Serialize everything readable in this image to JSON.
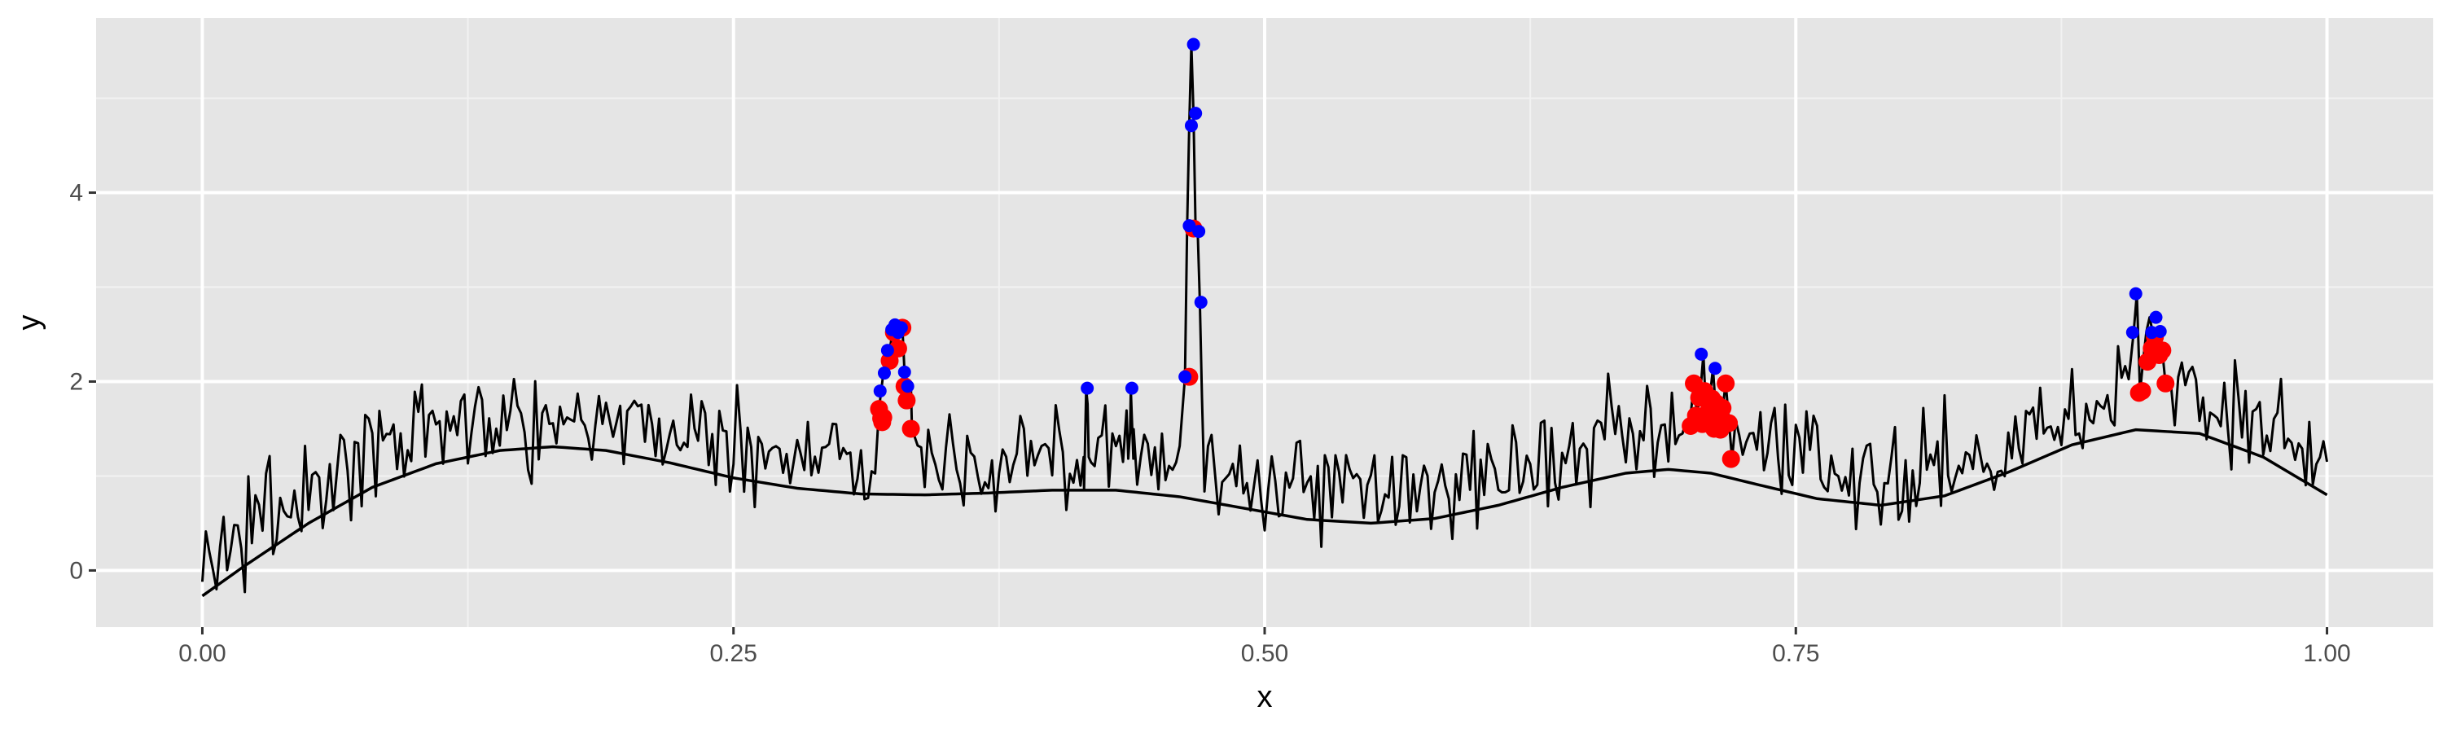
{
  "chart_data": {
    "type": "line",
    "title": "",
    "xlabel": "x",
    "ylabel": "y",
    "xlim": [
      -0.05,
      1.05
    ],
    "ylim": [
      -0.6,
      5.85
    ],
    "x_ticks": [
      0.0,
      0.25,
      0.5,
      0.75,
      1.0
    ],
    "x_tick_labels": [
      "0.00",
      "0.25",
      "0.50",
      "0.75",
      "1.00"
    ],
    "y_ticks": [
      0,
      2,
      4
    ],
    "y_tick_labels": [
      "0",
      "2",
      "4"
    ],
    "grid": true,
    "legend": "none",
    "colors": {
      "panel_background": "#e5e5e5",
      "grid_major": "#ffffff",
      "grid_minor": "#f2f2f2",
      "line": "#000000",
      "red_points": "#ff0000",
      "blue_points": "#0000ff",
      "tick_text": "#4d4d4d",
      "tick_mark": "#333333"
    },
    "smooth_curve": {
      "x": [
        0.0,
        0.02,
        0.05,
        0.08,
        0.11,
        0.14,
        0.165,
        0.19,
        0.22,
        0.25,
        0.28,
        0.31,
        0.34,
        0.37,
        0.4,
        0.43,
        0.46,
        0.49,
        0.52,
        0.55,
        0.58,
        0.61,
        0.64,
        0.67,
        0.69,
        0.71,
        0.73,
        0.76,
        0.79,
        0.82,
        0.85,
        0.88,
        0.91,
        0.94,
        0.97,
        1.0
      ],
      "y": [
        -0.27,
        0.05,
        0.5,
        0.88,
        1.13,
        1.27,
        1.31,
        1.27,
        1.14,
        0.98,
        0.87,
        0.81,
        0.8,
        0.82,
        0.85,
        0.85,
        0.78,
        0.66,
        0.54,
        0.5,
        0.55,
        0.69,
        0.88,
        1.03,
        1.07,
        1.03,
        0.92,
        0.76,
        0.69,
        0.79,
        1.04,
        1.33,
        1.49,
        1.45,
        1.2,
        0.8
      ]
    },
    "noisy_series": {
      "baseline_offset": 0.35,
      "noise_amplitude": 0.28,
      "start_point": [
        0.0,
        -0.12
      ],
      "end_point": [
        1.0,
        1.15
      ],
      "point_count": 600,
      "spikes": [
        {
          "x": 0.416,
          "y": 1.92
        },
        {
          "x": 0.437,
          "y": 1.92
        }
      ]
    },
    "peak_clusters": [
      {
        "x": [
          0.3185,
          0.3195,
          0.3205,
          0.322,
          0.3235,
          0.325,
          0.3265,
          0.3275,
          0.3285,
          0.3295,
          0.3305,
          0.3315,
          0.3325,
          0.3335,
          0.334
        ],
        "y": [
          1.71,
          1.9,
          2.08,
          2.22,
          2.33,
          2.55,
          2.6,
          2.52,
          2.6,
          2.57,
          2.1,
          1.95,
          1.8,
          1.95,
          1.5
        ]
      },
      {
        "x": [
          0.4625,
          0.4635,
          0.4645,
          0.4655,
          0.4665,
          0.4675,
          0.4685,
          0.4695,
          0.4705
        ],
        "y": [
          2.05,
          3.63,
          4.71,
          5.57,
          4.84,
          3.6,
          3.58,
          2.84,
          1.83
        ]
      },
      {
        "x": [
          0.7,
          0.702,
          0.7035,
          0.705,
          0.7065,
          0.708,
          0.7095,
          0.711,
          0.7125,
          0.714,
          0.7155,
          0.717,
          0.7185,
          0.72
        ],
        "y": [
          1.53,
          1.98,
          1.65,
          1.87,
          2.29,
          1.56,
          1.83,
          2.14,
          1.65,
          1.49,
          1.7,
          1.99,
          1.58,
          1.18
        ]
      },
      {
        "x": [
          0.909,
          0.9105,
          0.912,
          0.9135,
          0.915,
          0.9165,
          0.918,
          0.9195,
          0.921,
          0.9225,
          0.924
        ],
        "y": [
          2.52,
          2.93,
          1.88,
          2.23,
          2.53,
          2.68,
          2.52,
          2.29,
          2.55,
          2.32,
          1.98
        ]
      }
    ],
    "red_points": {
      "x": [
        0.3185,
        0.3195,
        0.32,
        0.3205,
        0.3235,
        0.3255,
        0.3275,
        0.3295,
        0.3305,
        0.3315,
        0.3335,
        0.4645,
        0.4665,
        0.7005,
        0.702,
        0.703,
        0.7045,
        0.706,
        0.707,
        0.708,
        0.709,
        0.7105,
        0.7115,
        0.7125,
        0.7135,
        0.7145,
        0.7155,
        0.717,
        0.7185,
        0.7195,
        0.9115,
        0.913,
        0.9155,
        0.9175,
        0.919,
        0.921,
        0.9225,
        0.924
      ],
      "y": [
        1.71,
        1.61,
        1.57,
        1.62,
        2.22,
        2.52,
        2.35,
        2.57,
        1.95,
        1.8,
        1.5,
        2.05,
        3.62,
        1.53,
        1.98,
        1.64,
        1.83,
        1.55,
        1.9,
        1.56,
        1.69,
        1.82,
        1.5,
        1.77,
        1.6,
        1.49,
        1.72,
        1.98,
        1.56,
        1.18,
        1.88,
        1.9,
        2.21,
        2.35,
        2.47,
        2.28,
        2.33,
        1.98
      ]
    },
    "blue_points": {
      "x": [
        0.319,
        0.321,
        0.3225,
        0.3245,
        0.326,
        0.3275,
        0.329,
        0.3305,
        0.332,
        0.4165,
        0.4375,
        0.4625,
        0.4645,
        0.4655,
        0.4665,
        0.4675,
        0.469,
        0.47,
        0.7055,
        0.712,
        0.9085,
        0.91,
        0.9175,
        0.9195,
        0.9215
      ],
      "y": [
        1.9,
        2.09,
        2.33,
        2.55,
        2.6,
        2.52,
        2.57,
        2.1,
        1.95,
        1.93,
        1.93,
        2.05,
        3.65,
        4.71,
        5.57,
        4.84,
        3.59,
        2.84,
        2.29,
        2.14,
        2.52,
        2.93,
        2.52,
        2.68,
        2.53
      ]
    }
  }
}
